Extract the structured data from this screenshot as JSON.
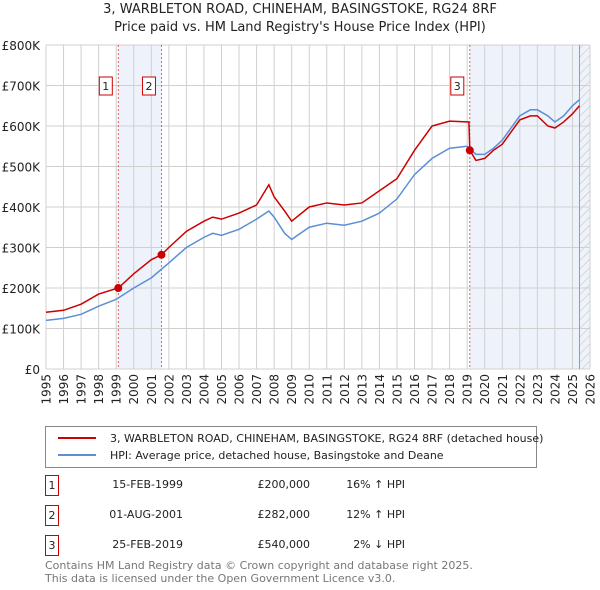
{
  "chart_data": {
    "type": "line",
    "title": "3, WARBLETON ROAD, CHINEHAM, BASINGSTOKE, RG24 8RF",
    "subtitle": "Price paid vs. HM Land Registry's House Price Index (HPI)",
    "xlim": [
      1995,
      2026
    ],
    "ylim": [
      0,
      800000
    ],
    "y_ticks": [
      {
        "v": 0,
        "label": "£0"
      },
      {
        "v": 100000,
        "label": "£100K"
      },
      {
        "v": 200000,
        "label": "£200K"
      },
      {
        "v": 300000,
        "label": "£300K"
      },
      {
        "v": 400000,
        "label": "£400K"
      },
      {
        "v": 500000,
        "label": "£500K"
      },
      {
        "v": 600000,
        "label": "£600K"
      },
      {
        "v": 700000,
        "label": "£700K"
      },
      {
        "v": 800000,
        "label": "£800K"
      }
    ],
    "x_ticks": [
      "1995",
      "1996",
      "1997",
      "1998",
      "1999",
      "2000",
      "2001",
      "2002",
      "2003",
      "2004",
      "2005",
      "2006",
      "2007",
      "2008",
      "2009",
      "2010",
      "2011",
      "2012",
      "2013",
      "2014",
      "2015",
      "2016",
      "2017",
      "2018",
      "2019",
      "2020",
      "2021",
      "2022",
      "2023",
      "2024",
      "2025",
      "2026"
    ],
    "grid": true,
    "series": [
      {
        "name": "3, WARBLETON ROAD, CHINEHAM, BASINGSTOKE, RG24 8RF (detached house)",
        "color": "#cc0000",
        "x": [
          1995,
          1996,
          1997,
          1998,
          1999.12,
          2000,
          2001,
          2001.58,
          2002,
          2003,
          2004,
          2004.5,
          2005,
          2006,
          2007,
          2007.7,
          2008,
          2008.6,
          2009,
          2010,
          2011,
          2012,
          2013,
          2014,
          2015,
          2016,
          2017,
          2018,
          2019.1,
          2019.15,
          2019.5,
          2020,
          2020.5,
          2021,
          2022,
          2022.6,
          2023,
          2023.6,
          2024,
          2024.5,
          2025,
          2025.4
        ],
        "y": [
          140000,
          145000,
          160000,
          185000,
          200000,
          235000,
          270000,
          282000,
          300000,
          340000,
          365000,
          375000,
          370000,
          385000,
          405000,
          455000,
          425000,
          390000,
          365000,
          400000,
          410000,
          405000,
          410000,
          440000,
          470000,
          540000,
          600000,
          612000,
          610000,
          540000,
          515000,
          520000,
          540000,
          555000,
          615000,
          625000,
          625000,
          600000,
          595000,
          610000,
          630000,
          650000
        ]
      },
      {
        "name": "HPI: Average price, detached house, Basingstoke and Deane",
        "color": "#5b8fd4",
        "x": [
          1995,
          1996,
          1997,
          1998,
          1999,
          2000,
          2001,
          2002,
          2003,
          2004,
          2004.5,
          2005,
          2006,
          2007,
          2007.7,
          2008,
          2008.6,
          2009,
          2010,
          2011,
          2012,
          2013,
          2014,
          2015,
          2016,
          2017,
          2018,
          2019,
          2019.5,
          2020,
          2020.5,
          2021,
          2022,
          2022.6,
          2023,
          2023.6,
          2024,
          2024.5,
          2025,
          2025.4
        ],
        "y": [
          120000,
          125000,
          135000,
          155000,
          172000,
          200000,
          225000,
          262000,
          300000,
          325000,
          335000,
          330000,
          345000,
          370000,
          390000,
          375000,
          335000,
          320000,
          350000,
          360000,
          355000,
          365000,
          385000,
          420000,
          480000,
          520000,
          545000,
          550000,
          530000,
          530000,
          545000,
          565000,
          625000,
          640000,
          640000,
          625000,
          610000,
          625000,
          650000,
          665000
        ]
      }
    ],
    "sales": [
      {
        "n": "1",
        "x": 1999.12,
        "y": 200000
      },
      {
        "n": "2",
        "x": 2001.58,
        "y": 282000
      },
      {
        "n": "3",
        "x": 2019.15,
        "y": 540000
      }
    ],
    "shaded": [
      [
        1999.12,
        2001.58
      ],
      [
        2019.15,
        2026
      ]
    ],
    "hatched_from": 2025.4
  },
  "legend": {
    "red": "3, WARBLETON ROAD, CHINEHAM, BASINGSTOKE, RG24 8RF (detached house)",
    "blue": "HPI: Average price, detached house, Basingstoke and Deane"
  },
  "table": [
    {
      "n": "1",
      "date": "15-FEB-1999",
      "price": "£200,000",
      "hpi": "16% ↑ HPI"
    },
    {
      "n": "2",
      "date": "01-AUG-2001",
      "price": "£282,000",
      "hpi": "12% ↑ HPI"
    },
    {
      "n": "3",
      "date": "25-FEB-2019",
      "price": "£540,000",
      "hpi": "2% ↓ HPI"
    }
  ],
  "footer": {
    "line1": "Contains HM Land Registry data © Crown copyright and database right 2025.",
    "line2": "This data is licensed under the Open Government Licence v3.0."
  }
}
